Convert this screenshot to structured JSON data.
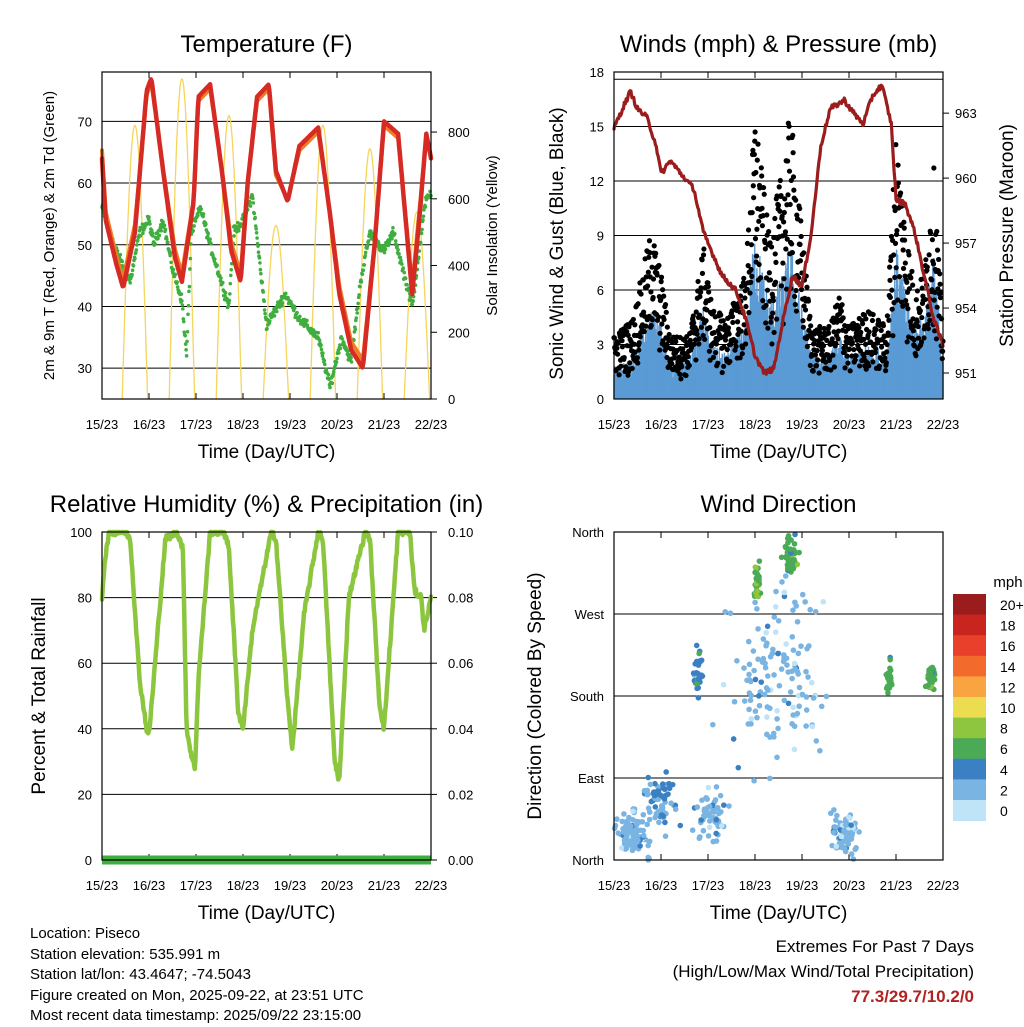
{
  "chart_data": [
    {
      "id": "temperature",
      "type": "line",
      "title": "Temperature (F)",
      "xlabel": "Time (Day/UTC)",
      "ylabel": "2m & 9m T (Red, Orange) & 2m Td (Green)",
      "y2label": "Solar Insolation (Yellow)",
      "x_ticks": [
        "15/23",
        "16/23",
        "17/23",
        "18/23",
        "19/23",
        "20/23",
        "21/23",
        "22/23"
      ],
      "xlim": [
        0,
        7
      ],
      "ylim": [
        25,
        78
      ],
      "y_ticks": [
        30,
        40,
        50,
        60,
        70
      ],
      "y2lim": [
        0,
        980
      ],
      "y2_ticks": [
        0,
        200,
        400,
        600,
        800
      ],
      "series": [
        {
          "name": "2m T",
          "color": "#d62b24",
          "x": [
            0,
            0.08,
            0.3,
            0.45,
            0.7,
            0.95,
            1.05,
            1.3,
            1.55,
            1.7,
            1.95,
            2.05,
            2.3,
            2.55,
            2.75,
            2.95,
            3.1,
            3.3,
            3.55,
            3.7,
            3.95,
            4.2,
            4.6,
            4.85,
            5.05,
            5.3,
            5.55,
            5.8,
            6.0,
            6.3,
            6.6,
            6.75,
            6.9,
            7.0
          ],
          "y": [
            64,
            54,
            47,
            43,
            52,
            75,
            77,
            62,
            48,
            44,
            57,
            74,
            76,
            62,
            49,
            44,
            60,
            74,
            76,
            62,
            57,
            66,
            69,
            55,
            42,
            33,
            30,
            50,
            70,
            68,
            42,
            54,
            68,
            64
          ]
        },
        {
          "name": "9m T",
          "color": "#f07c24",
          "x": [
            0,
            0.08,
            0.3,
            0.45,
            0.7,
            0.95,
            1.05,
            1.3,
            1.55,
            1.7,
            1.95,
            2.05,
            2.3,
            2.55,
            2.75,
            2.95,
            3.1,
            3.3,
            3.55,
            3.7,
            3.95,
            4.2,
            4.6,
            4.85,
            5.05,
            5.3,
            5.55,
            5.8,
            6.0,
            6.3,
            6.6,
            6.75,
            6.9,
            7.0
          ],
          "y": [
            65,
            55,
            48,
            44,
            53,
            74,
            76,
            62,
            49,
            45,
            57,
            73,
            75,
            62,
            50,
            45,
            60,
            73,
            75,
            61,
            57,
            65,
            68,
            55,
            43,
            34,
            31,
            50,
            69,
            67,
            43,
            55,
            67,
            64
          ]
        },
        {
          "name": "2m Td",
          "color": "#3fae3f",
          "x": [
            0,
            0.3,
            0.6,
            0.8,
            1.0,
            1.1,
            1.3,
            1.5,
            1.7,
            1.8,
            1.9,
            2.1,
            2.3,
            2.5,
            2.7,
            2.8,
            3.0,
            3.2,
            3.5,
            3.9,
            4.2,
            4.6,
            4.85,
            5.1,
            5.3,
            5.5,
            5.7,
            6.0,
            6.2,
            6.6,
            6.9,
            7.0
          ],
          "y": [
            56,
            49,
            44,
            52,
            54,
            50,
            54,
            46,
            41,
            32,
            52,
            56,
            50,
            45,
            40,
            52,
            54,
            58,
            37,
            42,
            38,
            35,
            27,
            35,
            31,
            44,
            52,
            49,
            52,
            40,
            58,
            58
          ]
        },
        {
          "name": "Solar Insolation",
          "axis": "y2",
          "color": "#f5d55a",
          "peaks": [
            {
              "x": 0.7,
              "y": 820
            },
            {
              "x": 1.7,
              "y": 960
            },
            {
              "x": 2.7,
              "y": 850
            },
            {
              "x": 3.7,
              "y": 520
            },
            {
              "x": 4.7,
              "y": 820
            },
            {
              "x": 5.7,
              "y": 750
            },
            {
              "x": 6.7,
              "y": 560
            }
          ]
        }
      ]
    },
    {
      "id": "winds",
      "type": "scatter",
      "title": "Winds (mph) & Pressure (mb)",
      "xlabel": "Time (Day/UTC)",
      "ylabel": "Sonic Wind & Gust (Blue, Black)",
      "y2label": "Station Pressure (Maroon)",
      "x_ticks": [
        "15/23",
        "16/23",
        "17/23",
        "18/23",
        "19/23",
        "20/23",
        "21/23",
        "22/23"
      ],
      "xlim": [
        0,
        7
      ],
      "ylim": [
        0,
        18
      ],
      "y_ticks": [
        0,
        3,
        6,
        9,
        12,
        15,
        18
      ],
      "y2lim": [
        949.8,
        964.9
      ],
      "y2_ticks": [
        951,
        954,
        957,
        960,
        963
      ],
      "series": [
        {
          "name": "Sonic Wind",
          "color": "#5b9bd5",
          "envelope": [
            1.8,
            2.2,
            5,
            4.5,
            2,
            2.2,
            5,
            3,
            2.5,
            4.2,
            9.5,
            5.5,
            7,
            9,
            6.5,
            2.5,
            2.6,
            3.5,
            2.4,
            3,
            2.6,
            8.5,
            6,
            4,
            4.8,
            8,
            4,
            2.5
          ],
          "envelope_x": [
            0,
            0.4,
            0.8,
            1.0,
            1.2,
            1.6,
            1.9,
            2.1,
            2.4,
            2.8,
            3.0,
            3.3,
            3.6,
            3.75,
            3.9,
            4.2,
            4.6,
            4.8,
            5.0,
            5.4,
            5.8,
            6.0,
            6.2,
            6.4,
            6.6,
            6.8,
            6.95,
            7.0
          ]
        },
        {
          "name": "Gust",
          "color": "#000000",
          "envelope": [
            3.5,
            4.5,
            9.5,
            7,
            3.5,
            3.5,
            8.5,
            5,
            4.5,
            7,
            16,
            9,
            13,
            16,
            12,
            4,
            4,
            6,
            4,
            5,
            4,
            15,
            10,
            6,
            7,
            13,
            6,
            4
          ],
          "envelope_x": [
            0,
            0.4,
            0.8,
            1.0,
            1.2,
            1.6,
            1.9,
            2.1,
            2.4,
            2.8,
            3.0,
            3.3,
            3.6,
            3.75,
            3.9,
            4.2,
            4.6,
            4.8,
            5.0,
            5.4,
            5.8,
            6.0,
            6.2,
            6.4,
            6.6,
            6.8,
            6.95,
            7.0
          ]
        },
        {
          "name": "Station Pressure",
          "axis": "y2",
          "color": "#9b1c1c",
          "x": [
            0,
            0.2,
            0.35,
            0.5,
            0.7,
            0.9,
            1.0,
            1.2,
            1.5,
            1.7,
            1.9,
            2.1,
            2.3,
            2.6,
            2.8,
            3.0,
            3.2,
            3.4,
            3.6,
            3.8,
            4.0,
            4.2,
            4.4,
            4.6,
            4.9,
            5.1,
            5.3,
            5.5,
            5.7,
            5.9,
            6.0,
            6.2,
            6.4,
            6.6,
            6.8,
            7.0
          ],
          "y": [
            962.3,
            963.3,
            964.0,
            963.2,
            962.8,
            961.5,
            960.2,
            960.8,
            960.0,
            959.5,
            957.5,
            956.5,
            955.5,
            954.8,
            953.5,
            951.8,
            951.0,
            951.2,
            953.5,
            955.5,
            955.0,
            957.5,
            961.5,
            963.2,
            963.6,
            963.0,
            962.5,
            963.8,
            964.3,
            962.5,
            959.0,
            958.8,
            957.5,
            955.5,
            953.5,
            952.3
          ]
        }
      ]
    },
    {
      "id": "humidity",
      "type": "line",
      "title": "Relative Humidity (%) & Precipitation (in)",
      "xlabel": "Time (Day/UTC)",
      "ylabel": "Percent & Total Rainfall",
      "x_ticks": [
        "15/23",
        "16/23",
        "17/23",
        "18/23",
        "19/23",
        "20/23",
        "21/23",
        "22/23"
      ],
      "xlim": [
        0,
        7
      ],
      "ylim": [
        0,
        100
      ],
      "y_ticks": [
        0,
        20,
        40,
        60,
        80,
        100
      ],
      "y2lim": [
        0,
        0.1
      ],
      "y2_ticks": [
        "0.00",
        "0.02",
        "0.04",
        "0.06",
        "0.08",
        "0.10"
      ],
      "series": [
        {
          "name": "Relative Humidity",
          "color": "#8cc63f",
          "x": [
            0,
            0.05,
            0.15,
            0.5,
            0.6,
            0.8,
            0.95,
            1.0,
            1.1,
            1.35,
            1.6,
            1.72,
            1.8,
            1.9,
            1.98,
            2.05,
            2.3,
            2.6,
            2.7,
            2.9,
            3.0,
            3.2,
            3.6,
            3.7,
            3.95,
            4.05,
            4.3,
            4.6,
            4.7,
            4.95,
            5.05,
            5.25,
            5.6,
            5.7,
            5.9,
            6.0,
            6.3,
            6.55,
            6.65,
            6.8,
            6.85,
            7.0
          ],
          "y": [
            80,
            90,
            100,
            100,
            98,
            55,
            40,
            38,
            55,
            98,
            100,
            95,
            40,
            32,
            28,
            55,
            100,
            100,
            95,
            45,
            40,
            70,
            100,
            98,
            48,
            34,
            75,
            100,
            98,
            30,
            24,
            80,
            100,
            98,
            48,
            40,
            100,
            100,
            82,
            80,
            70,
            80
          ]
        },
        {
          "name": "Total Precipitation",
          "axis": "y2",
          "color": "#3fae3f",
          "x": [
            0,
            7
          ],
          "y": [
            0,
            0
          ]
        }
      ]
    },
    {
      "id": "wind-direction",
      "type": "scatter",
      "title": "Wind Direction",
      "xlabel": "Time (Day/UTC)",
      "ylabel": "Direction (Colored By Speed)",
      "x_ticks": [
        "15/23",
        "16/23",
        "17/23",
        "18/23",
        "19/23",
        "20/23",
        "21/23",
        "22/23"
      ],
      "xlim": [
        0,
        7
      ],
      "ylim": [
        0,
        360
      ],
      "y_ticks": [
        "North",
        "East",
        "South",
        "West",
        "North"
      ],
      "legend_title": "mph",
      "legend_labels": [
        "20+",
        "18",
        "16",
        "14",
        "12",
        "10",
        "8",
        "6",
        "4",
        "2",
        "0"
      ],
      "legend_colors": [
        "#9b1c1c",
        "#c9251f",
        "#e8402a",
        "#f26b2d",
        "#f9a440",
        "#ecdc50",
        "#8fc63f",
        "#4aaa55",
        "#3b80c2",
        "#7ab4e2",
        "#bfe3f7"
      ],
      "clusters": [
        {
          "x": 0.4,
          "y": 30,
          "spread_x": 0.55,
          "spread_y": 35,
          "n": 90,
          "speed": 2
        },
        {
          "x": 1.0,
          "y": 60,
          "spread_x": 0.5,
          "spread_y": 45,
          "n": 70,
          "speed": 3
        },
        {
          "x": 2.1,
          "y": 50,
          "spread_x": 0.5,
          "spread_y": 40,
          "n": 60,
          "speed": 2
        },
        {
          "x": 1.8,
          "y": 210,
          "spread_x": 0.15,
          "spread_y": 40,
          "n": 30,
          "speed": 4
        },
        {
          "x": 3.05,
          "y": 305,
          "spread_x": 0.1,
          "spread_y": 30,
          "n": 40,
          "speed": 7
        },
        {
          "x": 3.75,
          "y": 330,
          "spread_x": 0.2,
          "spread_y": 30,
          "n": 60,
          "speed": 6
        },
        {
          "x": 4.9,
          "y": 30,
          "spread_x": 0.4,
          "spread_y": 35,
          "n": 80,
          "speed": 2
        },
        {
          "x": 5.85,
          "y": 200,
          "spread_x": 0.1,
          "spread_y": 25,
          "n": 30,
          "speed": 6
        },
        {
          "x": 6.75,
          "y": 200,
          "spread_x": 0.15,
          "spread_y": 20,
          "n": 35,
          "speed": 6
        },
        {
          "x": 3.5,
          "y": 200,
          "spread_x": 1.5,
          "spread_y": 150,
          "n": 140,
          "speed": 2
        }
      ]
    }
  ],
  "info": {
    "location": "Location: Piseco",
    "elevation": "Station elevation: 535.991 m",
    "latlon": "Station lat/lon: 43.4647; -74.5043",
    "created": "Figure created on Mon, 2025-09-22, at 23:51 UTC",
    "timestamp": "Most recent data timestamp: 2025/09/22 23:15:00"
  },
  "extremes": {
    "title": "Extremes For Past 7 Days",
    "subtitle": "(High/Low/Max Wind/Total Precipitation)",
    "values": "77.3/29.7/10.2/0",
    "value_color": "#b22222"
  }
}
